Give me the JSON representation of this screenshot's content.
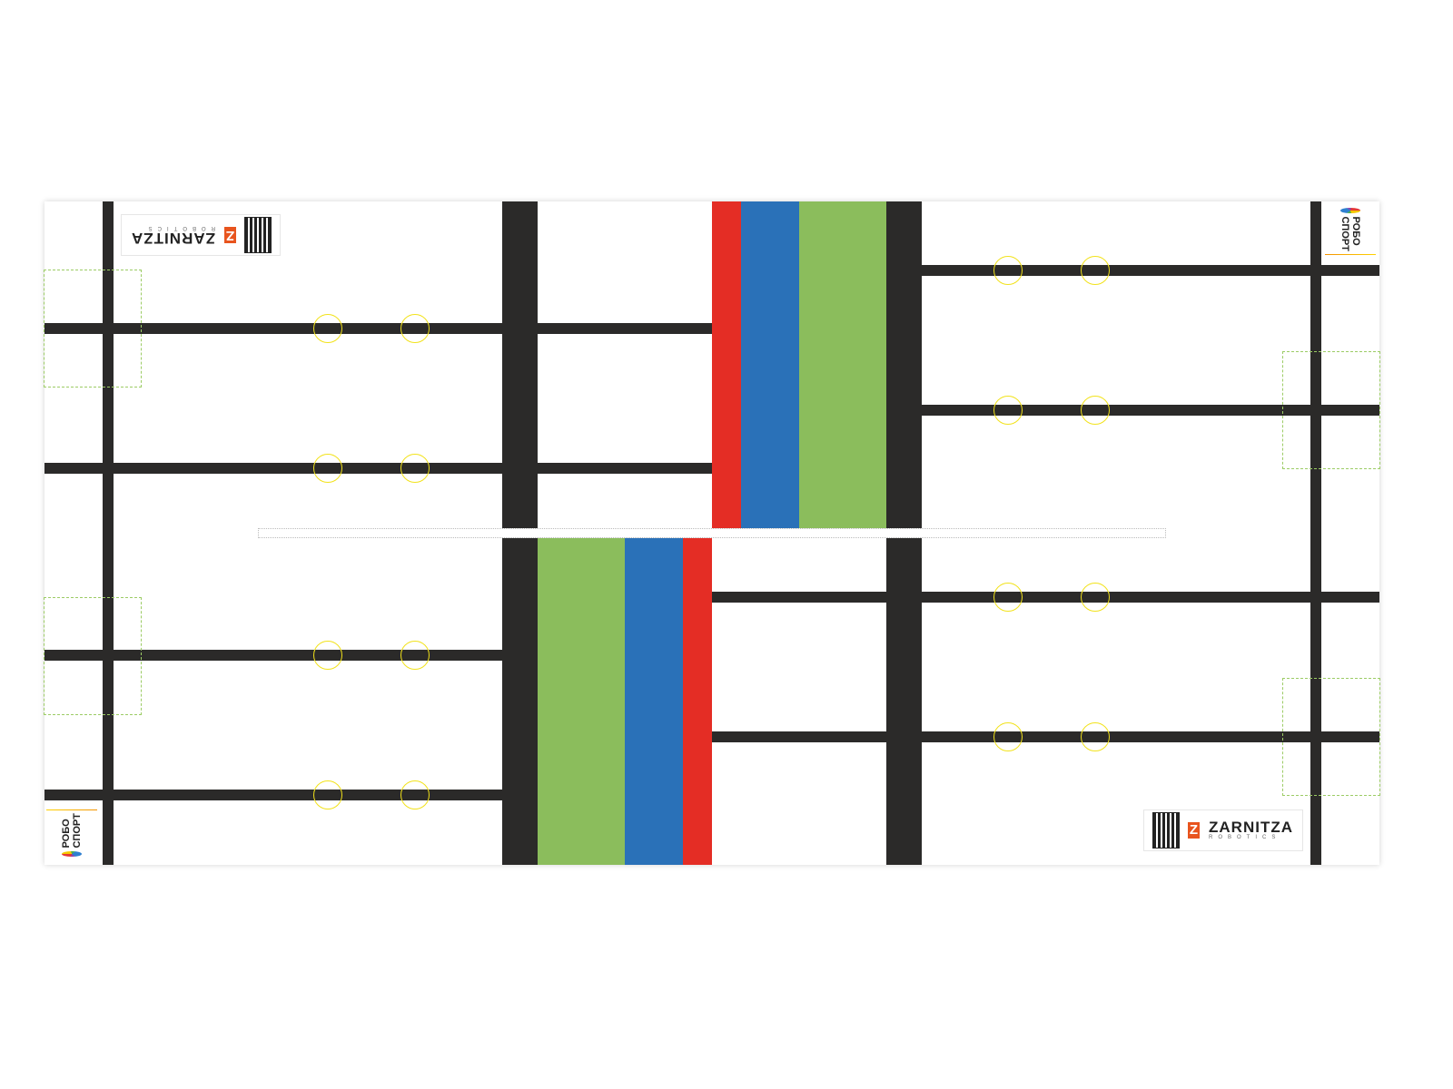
{
  "field": {
    "colors": {
      "line": "#2b2a29",
      "red": "#e42d25",
      "blue": "#2a71b8",
      "green": "#8bbd5c",
      "circle": "#f2e21a",
      "dashed": "#9ccc65"
    },
    "circle_marker_icon": "yellow-circle-outline"
  },
  "logos": {
    "zarnitza": {
      "name": "ZARNITZA",
      "sub": "ROBOTICS",
      "mark": "Z"
    },
    "robosport": {
      "line1": "РОБО",
      "line2": "СПОРТ"
    }
  }
}
